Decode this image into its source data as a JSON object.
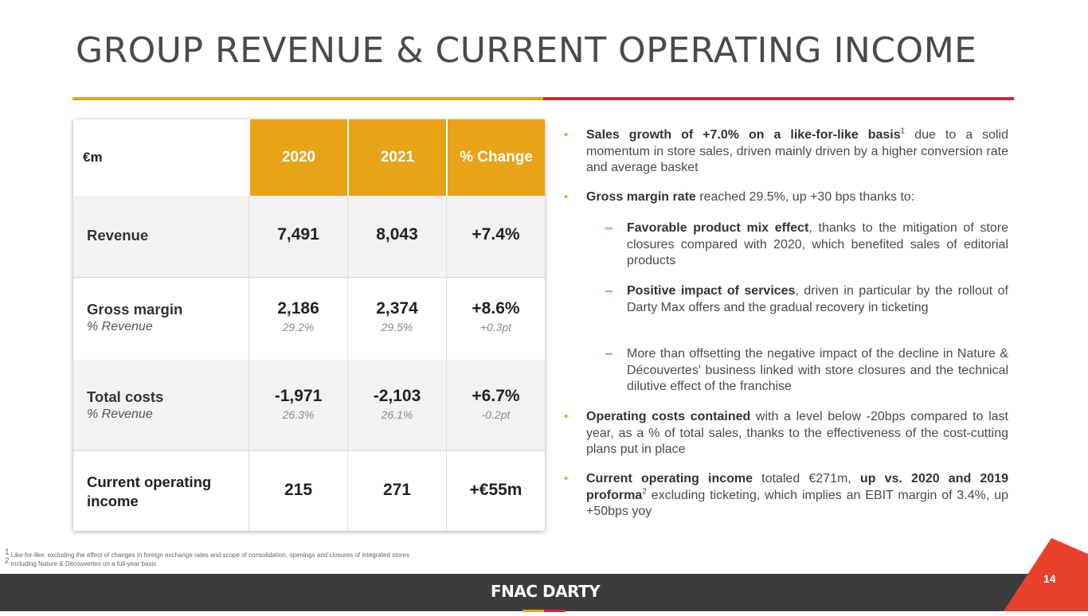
{
  "title": "GROUP REVENUE & CURRENT OPERATING INCOME",
  "colors": {
    "accent_yellow": "#e8a317",
    "accent_red": "#e31c3d",
    "footer": "#3c3c3c"
  },
  "table": {
    "headers": [
      "€m",
      "2020",
      "2021",
      "% Change"
    ],
    "rows": [
      {
        "label": "Revenue",
        "v2020": "7,491",
        "v2021": "8,043",
        "change": "+7.4%"
      },
      {
        "label": "Gross margin",
        "sublabel": "% Revenue",
        "v2020": "2,186",
        "v2021": "2,374",
        "change": "+8.6%",
        "s2020": "29.2%",
        "s2021": "29.5%",
        "schange": "+0.3pt"
      },
      {
        "label": "Total costs",
        "sublabel": "% Revenue",
        "v2020": "-1,971",
        "v2021": "-2,103",
        "change": "+6.7%",
        "s2020": "26.3%",
        "s2021": "26.1%",
        "schange": "-0.2pt"
      },
      {
        "label1": "Current operating",
        "label2": "income",
        "v2020": "215",
        "v2021": "271",
        "change": "+€55m"
      }
    ]
  },
  "bullets": {
    "b1": {
      "bold": "Sales growth of +7.0% on a like-for-like basis",
      "sup": "1",
      "rest": " due to a solid momentum in store sales, driven mainly driven by a higher conversion rate and average basket"
    },
    "b2": {
      "bold": "Gross margin rate",
      "rest": " reached 29.5%, up +30 bps thanks to:"
    },
    "s1": {
      "bold": "Favorable product mix effect",
      "rest": ", thanks to the mitigation of store closures compared with 2020, which benefited sales of editorial products"
    },
    "s2": {
      "bold": "Positive impact of services",
      "rest": ", driven in particular by the rollout of Darty Max offers and the gradual recovery in ticketing"
    },
    "s3": {
      "rest": "More than offsetting the negative impact of the decline in Nature & Découvertes' business linked with store closures and the technical dilutive effect of the franchise"
    },
    "b3": {
      "bold": "Operating costs contained",
      "rest": " with a level below -20bps compared to last year, as a % of total sales, thanks to the effectiveness of the cost-cutting plans put in place"
    },
    "b4": {
      "bold": "Current operating income",
      "mid": " totaled €271m, ",
      "bold2": "up vs. 2020 and 2019 proforma",
      "sup": "2",
      "rest": " excluding ticketing, which implies an EBIT margin of 3.4%, up +50bps yoy"
    }
  },
  "footnotes": {
    "f1_num": "1",
    "f1": "Like-for-like: excluding the effect of changes in foreign exchange rates and scope of consolidation, openings and closures of integrated stores",
    "f2_num": "2",
    "f2": "Including Nature & Découvertes on a full-year basis"
  },
  "footer": {
    "brand": "FNAC DARTY",
    "page_number": "14"
  }
}
